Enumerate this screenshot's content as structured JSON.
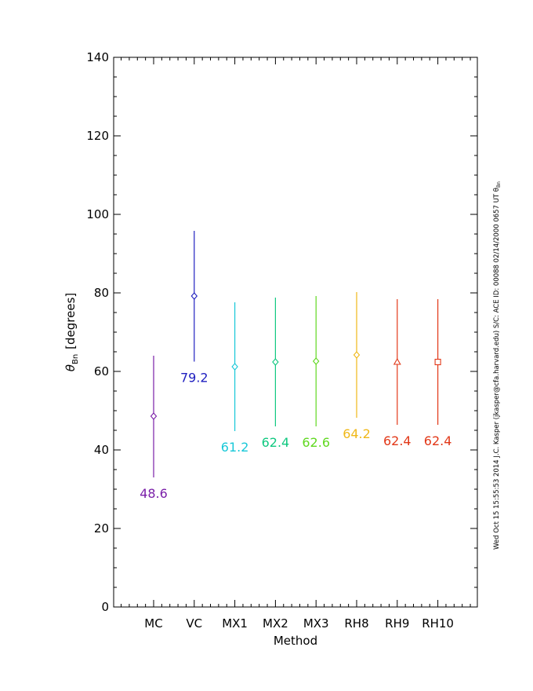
{
  "chart_data": {
    "type": "scatter",
    "title": "",
    "xlabel": "Method",
    "ylabel_symbol": "θ",
    "ylabel_subscript": "Bn",
    "ylabel_units": "[degrees]",
    "ylim": [
      0,
      140
    ],
    "yticks": [
      "0",
      "20",
      "40",
      "60",
      "80",
      "100",
      "120",
      "140"
    ],
    "categories": [
      "MC",
      "VC",
      "MX1",
      "MX2",
      "MX3",
      "RH8",
      "RH9",
      "RH10"
    ],
    "points": [
      {
        "category": "MC",
        "value": 48.6,
        "low": 33.0,
        "high": 64.0,
        "label": "48.6",
        "color": "#7a1fa8",
        "marker": "diamond"
      },
      {
        "category": "VC",
        "value": 79.2,
        "low": 62.5,
        "high": 95.8,
        "label": "79.2",
        "color": "#2020c0",
        "marker": "diamond"
      },
      {
        "category": "MX1",
        "value": 61.2,
        "low": 44.8,
        "high": 77.6,
        "label": "61.2",
        "color": "#18c8d8",
        "marker": "diamond"
      },
      {
        "category": "MX2",
        "value": 62.4,
        "low": 46.0,
        "high": 78.8,
        "label": "62.4",
        "color": "#10c880",
        "marker": "diamond"
      },
      {
        "category": "MX3",
        "value": 62.6,
        "low": 46.0,
        "high": 79.2,
        "label": "62.6",
        "color": "#60d820",
        "marker": "diamond"
      },
      {
        "category": "RH8",
        "value": 64.2,
        "low": 48.2,
        "high": 80.2,
        "label": "64.2",
        "color": "#f0b818",
        "marker": "diamond"
      },
      {
        "category": "RH9",
        "value": 62.4,
        "low": 46.4,
        "high": 78.4,
        "label": "62.4",
        "color": "#e23818",
        "marker": "triangle"
      },
      {
        "category": "RH10",
        "value": 62.4,
        "low": 46.4,
        "high": 78.4,
        "label": "62.4",
        "color": "#e23818",
        "marker": "square"
      }
    ],
    "grid": false,
    "legend": "none"
  },
  "side_note": "Wed Oct 15 15:55:53 2014  J.C. Kasper (jkasper@cfa.harvard.edu)   S/C: ACE ID: 00088 02/14/2000  0657 UT θ",
  "side_note_subscript": "Bn"
}
